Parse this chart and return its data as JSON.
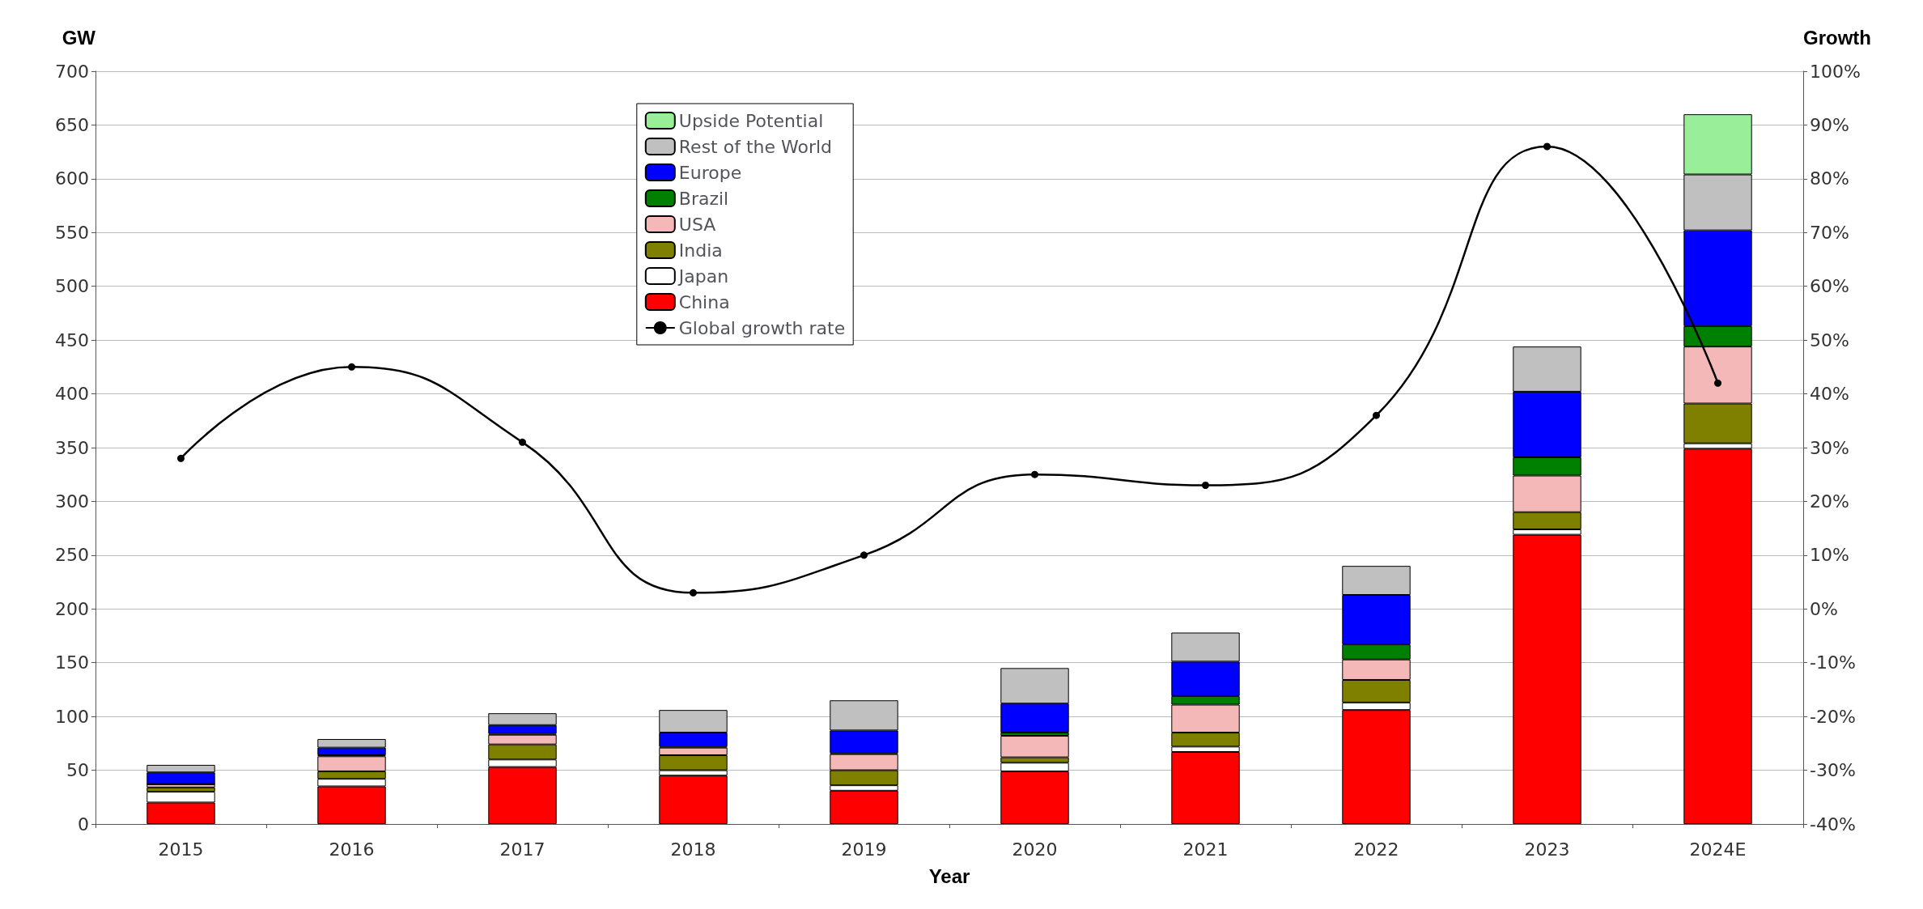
{
  "chart_data": {
    "type": "bar",
    "stacked": true,
    "xlabel": "Year",
    "ylabel": "GW",
    "y2label": "Growth",
    "categories": [
      "2015",
      "2016",
      "2017",
      "2018",
      "2019",
      "2020",
      "2021",
      "2022",
      "2023",
      "2024E"
    ],
    "ylim": [
      0,
      700
    ],
    "yticks": [
      0,
      50,
      100,
      150,
      200,
      250,
      300,
      350,
      400,
      450,
      500,
      550,
      600,
      650,
      700
    ],
    "y2lim": [
      -40,
      100
    ],
    "y2ticks": [
      {
        "value": -40,
        "label": "-40%"
      },
      {
        "value": -30,
        "label": "-30%"
      },
      {
        "value": -20,
        "label": "-20%"
      },
      {
        "value": -10,
        "label": "-10%"
      },
      {
        "value": 0,
        "label": "0%"
      },
      {
        "value": 10,
        "label": "10%"
      },
      {
        "value": 20,
        "label": "20%"
      },
      {
        "value": 30,
        "label": "30%"
      },
      {
        "value": 40,
        "label": "40%"
      },
      {
        "value": 50,
        "label": "50%"
      },
      {
        "value": 60,
        "label": "60%"
      },
      {
        "value": 70,
        "label": "70%"
      },
      {
        "value": 80,
        "label": "80%"
      },
      {
        "value": 90,
        "label": "90%"
      },
      {
        "value": 100,
        "label": "100%"
      }
    ],
    "grid": "y",
    "legend": "top",
    "marker": "circle",
    "series": [
      {
        "name": "China",
        "color": "#ff0000",
        "values": [
          20,
          35,
          53,
          45,
          31,
          49,
          67,
          106,
          269,
          349
        ]
      },
      {
        "name": "Japan",
        "color": "#ffffff",
        "values": [
          10,
          7,
          7,
          5,
          5,
          8,
          5,
          7,
          5,
          5
        ]
      },
      {
        "name": "India",
        "color": "#808000",
        "values": [
          4,
          7,
          14,
          14,
          14,
          5,
          13,
          21,
          16,
          37
        ]
      },
      {
        "name": "USA",
        "color": "#f4b8b8",
        "values": [
          3,
          14,
          9,
          7,
          15,
          20,
          26,
          19,
          34,
          53
        ]
      },
      {
        "name": "Brazil",
        "color": "#008000",
        "values": [
          0,
          1,
          1,
          1,
          1,
          3,
          8,
          14,
          17,
          19
        ]
      },
      {
        "name": "Europe",
        "color": "#0000ff",
        "values": [
          11,
          7,
          8,
          13,
          21,
          27,
          32,
          46,
          61,
          89
        ]
      },
      {
        "name": "Rest of the World",
        "color": "#c0c0c0",
        "values": [
          7,
          8,
          11,
          21,
          28,
          33,
          27,
          27,
          42,
          52
        ]
      },
      {
        "name": "Upside Potential",
        "color": "#99ee99",
        "values": [
          null,
          null,
          null,
          null,
          null,
          null,
          null,
          null,
          null,
          56
        ]
      },
      {
        "name": "Global growth rate",
        "type": "line",
        "axis": "y2",
        "color": "#000000",
        "values": [
          28,
          45,
          31,
          3,
          10,
          25,
          23,
          36,
          86,
          42
        ]
      }
    ]
  }
}
